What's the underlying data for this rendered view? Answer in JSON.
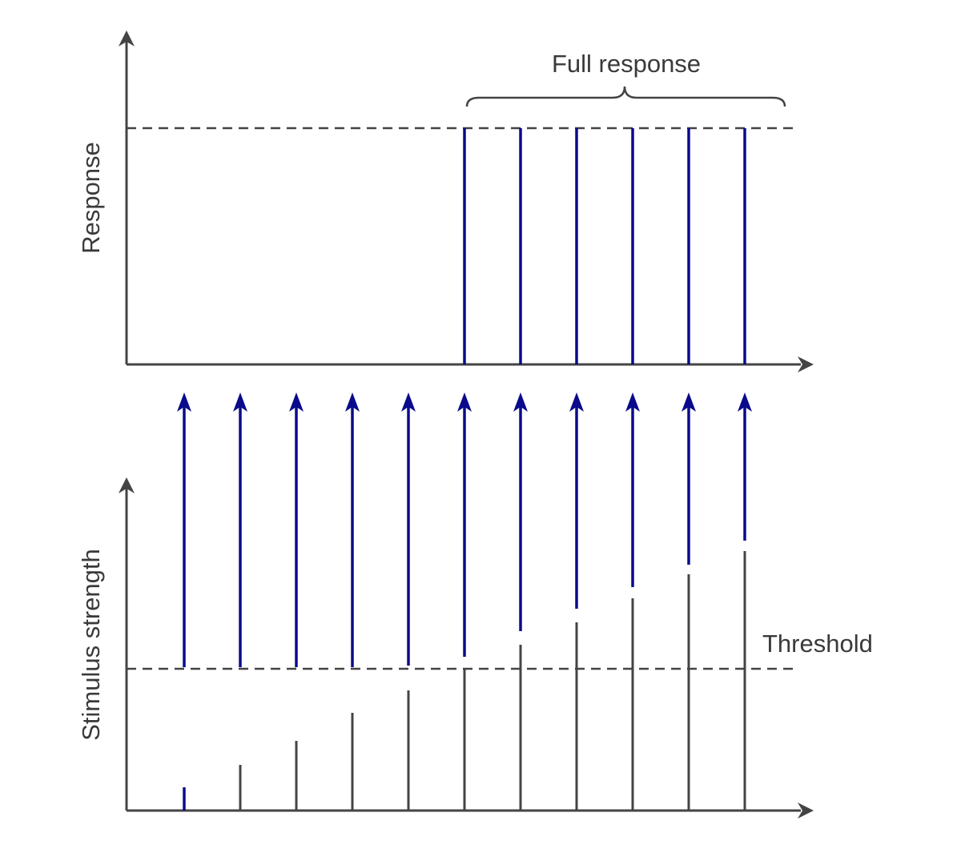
{
  "labels": {
    "full_response": "Full response",
    "response_axis": "Response",
    "stimulus_axis": "Stimulus strength",
    "threshold": "Threshold"
  }
}
